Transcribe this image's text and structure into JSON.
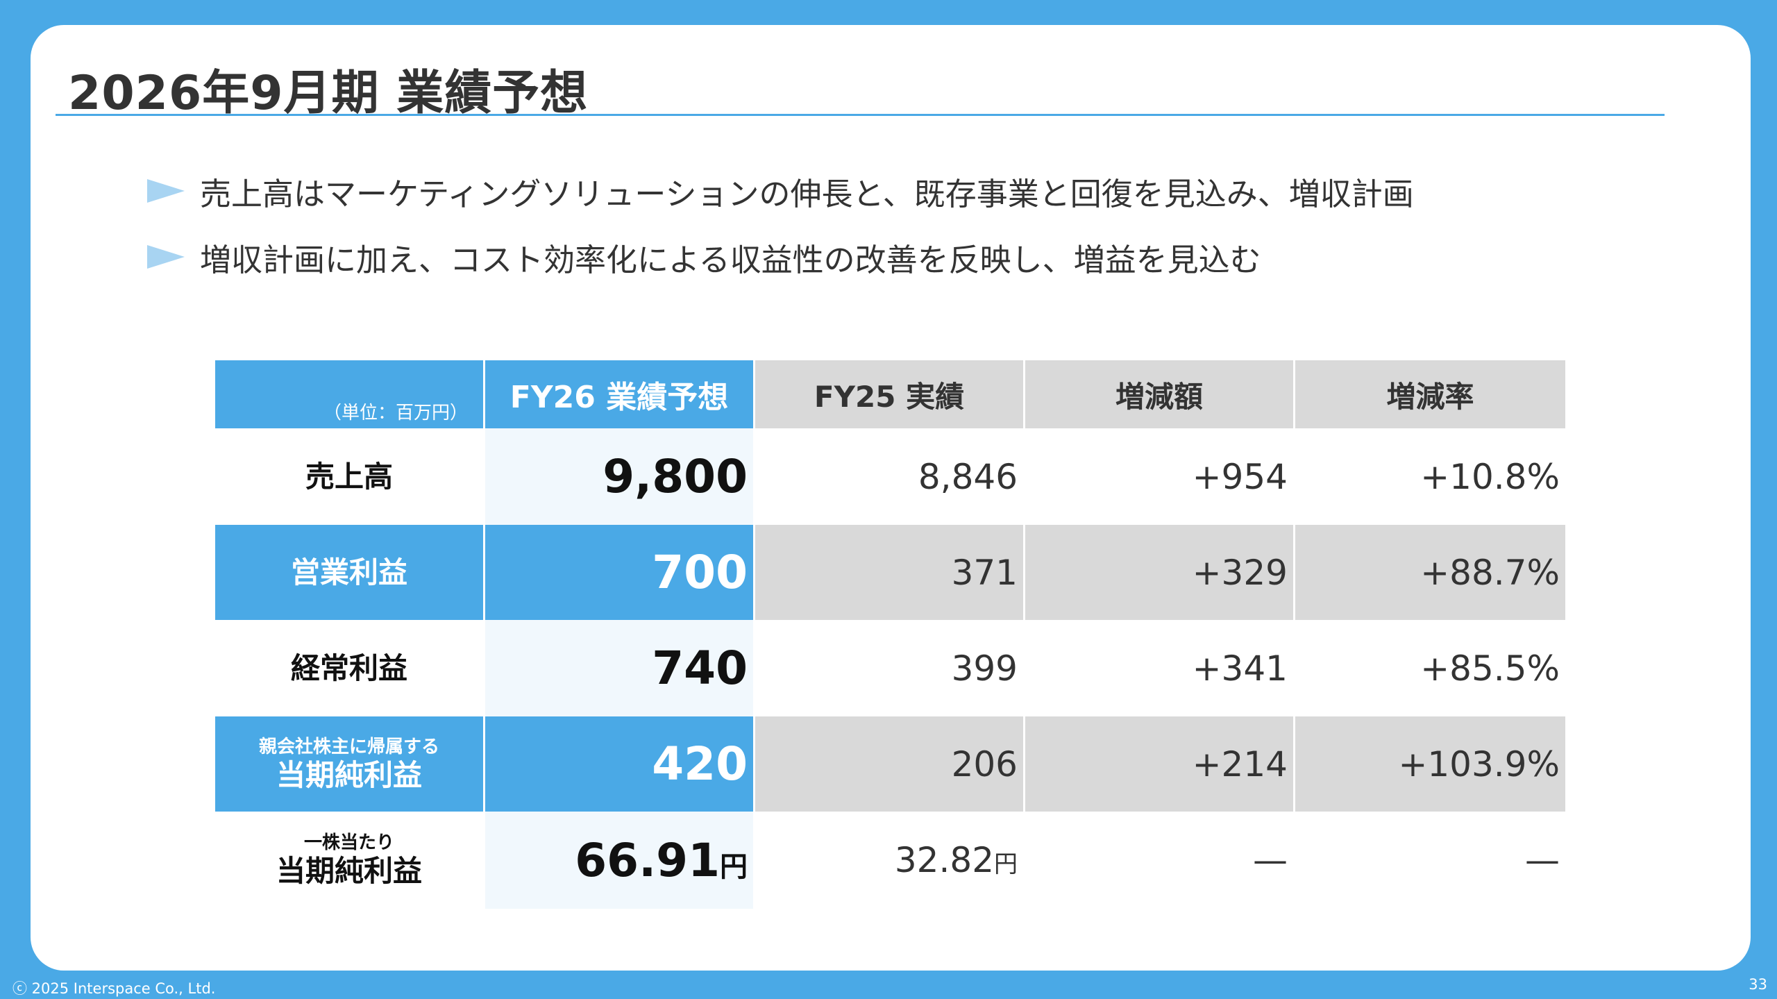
{
  "title": "2026年9月期 業績予想",
  "bullets": [
    "売上高はマーケティングソリューションの伸長と、既存事業と回復を見込み、増収計画",
    "増収計画に加え、コスト効率化による収益性の改善を反映し、増益を見込む"
  ],
  "table": {
    "unit_label": "（単位：百万円）",
    "headers": [
      "FY26 業績予想",
      "FY25 実績",
      "増減額",
      "増減率"
    ],
    "rows": [
      {
        "label_small": "",
        "label": "売上高",
        "fy26": "9,800",
        "fy26_unit": "",
        "fy25": "8,846",
        "fy25_unit": "",
        "diff": "+954",
        "rate": "+10.8%"
      },
      {
        "label_small": "",
        "label": "営業利益",
        "fy26": "700",
        "fy26_unit": "",
        "fy25": "371",
        "fy25_unit": "",
        "diff": "+329",
        "rate": "+88.7%"
      },
      {
        "label_small": "",
        "label": "経常利益",
        "fy26": "740",
        "fy26_unit": "",
        "fy25": "399",
        "fy25_unit": "",
        "diff": "+341",
        "rate": "+85.5%"
      },
      {
        "label_small": "親会社株主に帰属する",
        "label": "当期純利益",
        "fy26": "420",
        "fy26_unit": "",
        "fy25": "206",
        "fy25_unit": "",
        "diff": "+214",
        "rate": "+103.9%"
      },
      {
        "label_small": "一株当たり",
        "label": "当期純利益",
        "fy26": "66.91",
        "fy26_unit": "円",
        "fy25": "32.82",
        "fy25_unit": "円",
        "diff": "—",
        "rate": "—"
      }
    ]
  },
  "footer": {
    "copyright": "ⓒ 2025 Interspace Co., Ltd.",
    "page_number": "33"
  },
  "colors": {
    "brand_blue": "#4aa9e6",
    "light_blue": "#f1f8fd",
    "gray": "#d9d9d9",
    "bullet_icon": "#a8d4f2"
  }
}
